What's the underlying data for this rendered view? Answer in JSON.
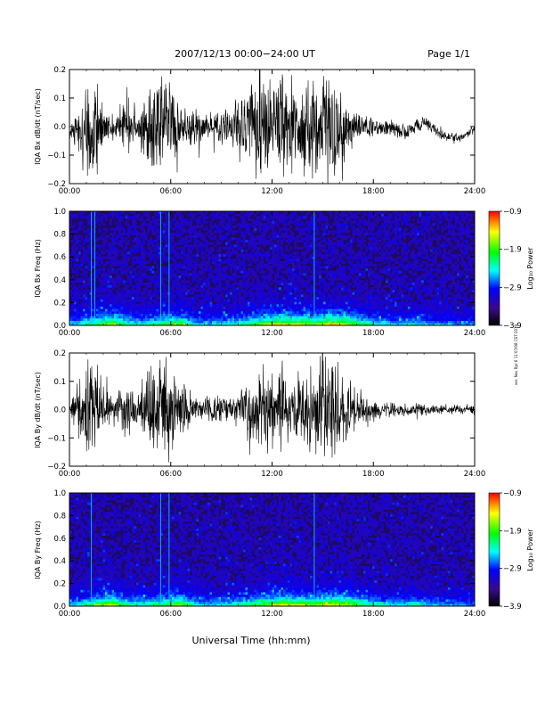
{
  "header": {
    "title": "2007/12/13  00:00−24:00 UT",
    "page": "Page 1/1"
  },
  "side_note": "ver. Nov Rpr 6 11’07/08 CST 2019",
  "xaxis_label": "Universal Time (hh:mm)",
  "colors": {
    "trace": "#000000",
    "spectrogram_background": "#1f0a5c",
    "colorbar_stops": [
      "#000000",
      "#3a0a8a",
      "#0000ff",
      "#00ffff",
      "#00ff00",
      "#ffff00",
      "#ff0000"
    ]
  },
  "chart_data": [
    {
      "type": "line",
      "id": "bx-dbdt",
      "ylabel": "IQA Bx dB/dt (nT/sec)",
      "xlim": [
        0,
        24
      ],
      "ylim": [
        -0.2,
        0.2
      ],
      "x_ticks": [
        "00:00",
        "06:00",
        "12:00",
        "18:00",
        "24:00"
      ],
      "y_ticks": [
        "−0.2",
        "−0.1",
        "0.0",
        "0.1",
        "0.2"
      ],
      "series": [
        {
          "envelope_x": [
            0,
            0.5,
            1,
            1.5,
            2,
            2.5,
            3,
            3.5,
            4,
            4.5,
            5,
            5.5,
            6,
            6.5,
            7,
            7.5,
            8,
            8.5,
            9,
            9.5,
            10,
            10.5,
            11,
            11.5,
            12,
            12.5,
            13,
            13.5,
            14,
            14.5,
            15,
            15.5,
            16,
            16.5,
            17,
            17.5,
            18,
            18.5,
            19,
            19.5,
            20,
            20.5,
            21,
            21.5,
            22,
            22.5,
            23,
            23.5,
            24
          ],
          "envelope_amp": [
            0.03,
            0.07,
            0.16,
            0.21,
            0.09,
            0.05,
            0.07,
            0.12,
            0.06,
            0.13,
            0.19,
            0.2,
            0.21,
            0.08,
            0.07,
            0.08,
            0.05,
            0.06,
            0.07,
            0.08,
            0.1,
            0.17,
            0.2,
            0.21,
            0.21,
            0.2,
            0.18,
            0.16,
            0.18,
            0.2,
            0.21,
            0.21,
            0.21,
            0.1,
            0.06,
            0.05,
            0.04,
            0.04,
            0.04,
            0.03,
            0.035,
            0.03,
            0.03,
            0.02,
            0.02,
            0.02,
            0.02,
            0.02,
            0.02
          ],
          "center_x": [
            0,
            2,
            4,
            6,
            8,
            10,
            12,
            14,
            16,
            18,
            20,
            21,
            22,
            23,
            24
          ],
          "center_y": [
            -0.02,
            0.0,
            0.0,
            0.0,
            0.0,
            0.0,
            0.0,
            0.0,
            0.0,
            0.0,
            -0.02,
            0.02,
            -0.03,
            -0.04,
            -0.01
          ]
        }
      ]
    },
    {
      "type": "heatmap",
      "id": "bx-spectrogram",
      "ylabel": "IQA Bx Freq (Hz)",
      "xlim": [
        0,
        24
      ],
      "ylim": [
        0,
        1.0
      ],
      "x_ticks": [
        "00:00",
        "06:00",
        "12:00",
        "18:00",
        "24:00"
      ],
      "y_ticks": [
        "0.0",
        "0.2",
        "0.4",
        "0.6",
        "0.8",
        "1.0"
      ],
      "colorbar": {
        "label": "Log₁₀ Power",
        "ticks": [
          "−0.9",
          "−1.9",
          "−2.9",
          "−3.9"
        ],
        "range": [
          -3.9,
          -0.9
        ]
      },
      "activity": [
        0.35,
        0.55,
        0.75,
        0.45,
        0.4,
        0.55,
        0.7,
        0.35,
        0.35,
        0.4,
        0.5,
        0.7,
        0.8,
        0.75,
        0.7,
        0.85,
        0.75,
        0.5,
        0.4,
        0.35,
        0.4,
        0.3,
        0.3,
        0.25
      ],
      "lines_x": [
        1.3,
        1.5,
        5.4,
        5.9,
        14.5
      ]
    },
    {
      "type": "line",
      "id": "by-dbdt",
      "ylabel": "IQA By dB/dt (nT/sec)",
      "xlim": [
        0,
        24
      ],
      "ylim": [
        -0.2,
        0.2
      ],
      "x_ticks": [
        "00:00",
        "06:00",
        "12:00",
        "18:00",
        "24:00"
      ],
      "y_ticks": [
        "−0.2",
        "−0.1",
        "0.0",
        "0.1",
        "0.2"
      ],
      "series": [
        {
          "envelope_x": [
            0,
            0.5,
            1,
            1.5,
            2,
            2.5,
            3,
            3.5,
            4,
            4.5,
            5,
            5.5,
            6,
            6.5,
            7,
            7.5,
            8,
            8.5,
            9,
            9.5,
            10,
            10.5,
            11,
            11.5,
            12,
            12.5,
            13,
            13.5,
            14,
            14.5,
            15,
            15.5,
            16,
            16.5,
            17,
            17.5,
            18,
            18.5,
            19,
            19.5,
            20,
            20.5,
            21,
            21.5,
            22,
            22.5,
            23,
            23.5,
            24
          ],
          "envelope_amp": [
            0.03,
            0.08,
            0.18,
            0.21,
            0.1,
            0.06,
            0.08,
            0.13,
            0.07,
            0.15,
            0.2,
            0.21,
            0.21,
            0.09,
            0.07,
            0.06,
            0.05,
            0.05,
            0.06,
            0.05,
            0.06,
            0.12,
            0.15,
            0.18,
            0.18,
            0.17,
            0.15,
            0.14,
            0.17,
            0.2,
            0.21,
            0.21,
            0.21,
            0.12,
            0.07,
            0.05,
            0.04,
            0.035,
            0.03,
            0.025,
            0.025,
            0.03,
            0.025,
            0.02,
            0.02,
            0.02,
            0.02,
            0.02,
            0.02
          ],
          "center_x": [
            0,
            24
          ],
          "center_y": [
            0.0,
            0.0
          ]
        }
      ]
    },
    {
      "type": "heatmap",
      "id": "by-spectrogram",
      "ylabel": "IQA By Freq (Hz)",
      "xlim": [
        0,
        24
      ],
      "ylim": [
        0,
        1.0
      ],
      "x_ticks": [
        "00:00",
        "06:00",
        "12:00",
        "18:00",
        "24:00"
      ],
      "y_ticks": [
        "0.0",
        "0.2",
        "0.4",
        "0.6",
        "0.8",
        "1.0"
      ],
      "colorbar": {
        "label": "Log₁₀ Power",
        "ticks": [
          "−0.9",
          "−1.9",
          "−2.9",
          "−3.9"
        ],
        "range": [
          -3.9,
          -0.9
        ]
      },
      "activity": [
        0.35,
        0.6,
        0.8,
        0.45,
        0.45,
        0.55,
        0.75,
        0.4,
        0.35,
        0.4,
        0.5,
        0.65,
        0.8,
        0.75,
        0.7,
        0.85,
        0.75,
        0.5,
        0.4,
        0.35,
        0.45,
        0.3,
        0.3,
        0.25
      ],
      "lines_x": [
        1.3,
        5.4,
        5.9,
        14.5
      ]
    }
  ]
}
